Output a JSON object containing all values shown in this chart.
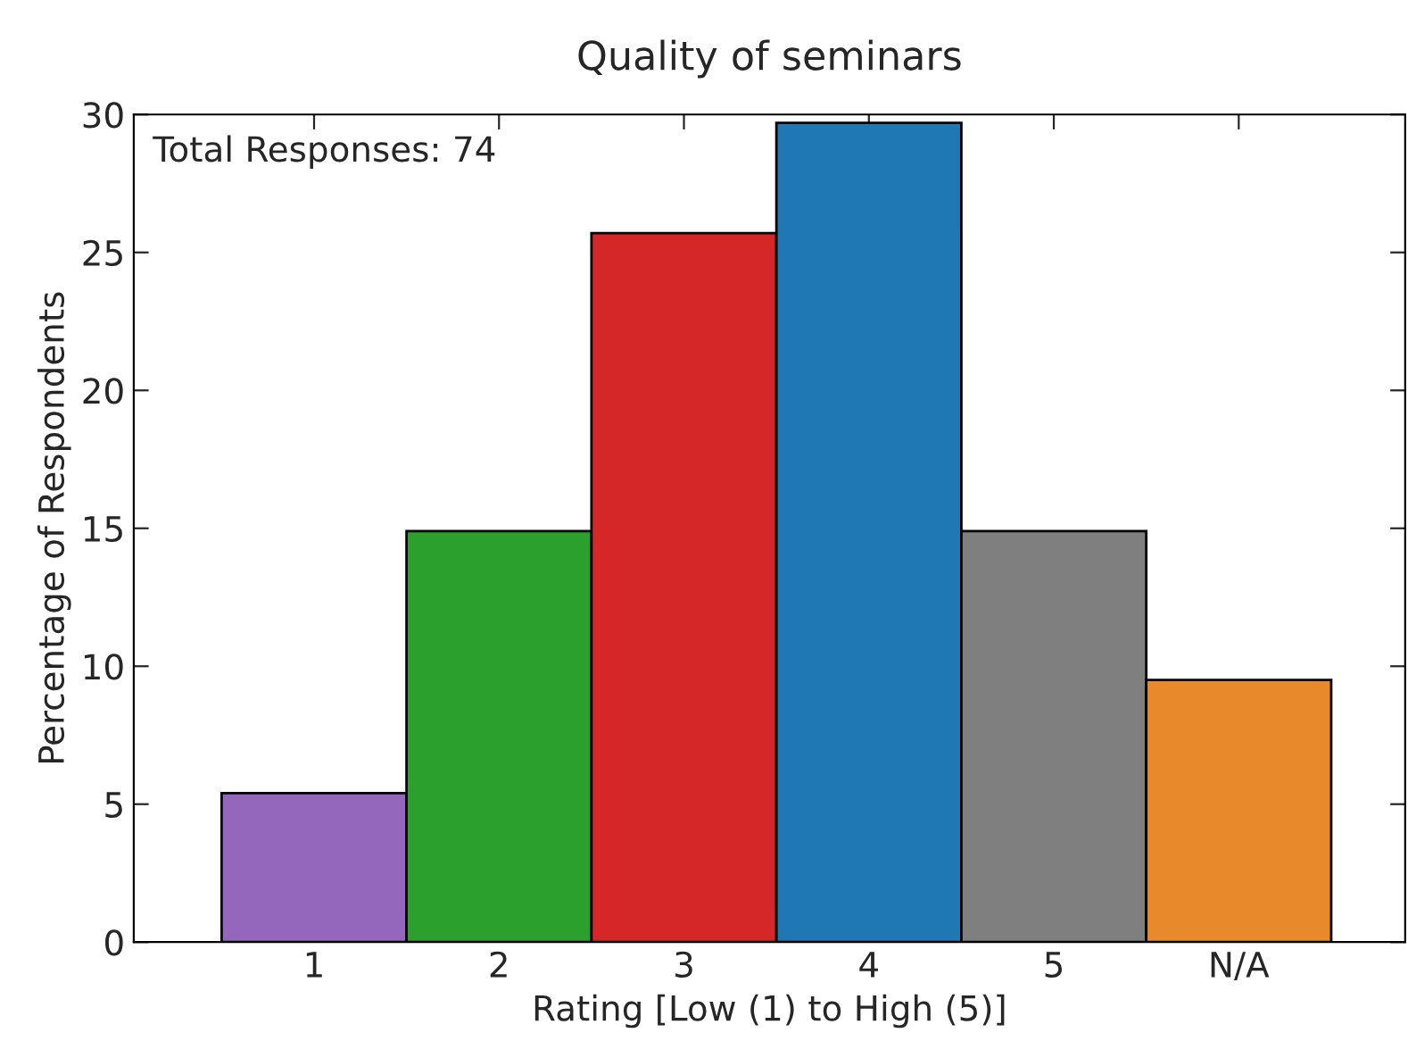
{
  "chart_data": {
    "type": "bar",
    "title": "Quality of seminars",
    "xlabel": "Rating [Low (1) to High (5)]",
    "ylabel": "Percentage of Respondents",
    "categories": [
      "1",
      "2",
      "3",
      "4",
      "5",
      "N/A"
    ],
    "values": [
      5.4,
      14.9,
      25.7,
      29.7,
      14.9,
      9.5
    ],
    "colors": [
      "#9467bd",
      "#2ca02c",
      "#d62728",
      "#1f77b4",
      "#7f7f7f",
      "#e8892b"
    ],
    "ylim": [
      0,
      30
    ],
    "yticks": [
      0,
      5,
      10,
      15,
      20,
      25,
      30
    ],
    "annotations": [
      "Total Responses: 74"
    ],
    "grid": false,
    "legend": false
  }
}
